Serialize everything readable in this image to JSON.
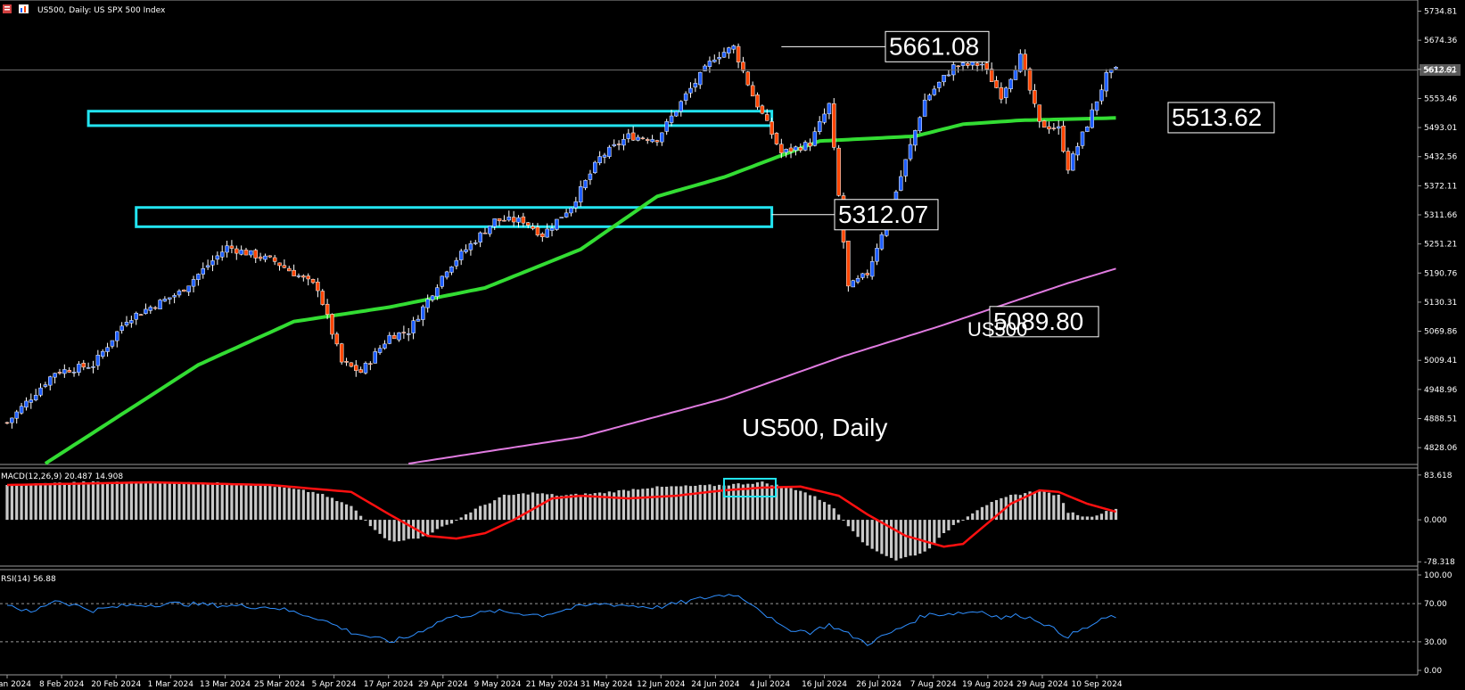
{
  "header": {
    "symbol_title": "US500, Daily:  US SPX 500 Index"
  },
  "watermark": {
    "text": "US500, Daily"
  },
  "colors": {
    "background": "#000000",
    "bull": "#1e5eff",
    "bear": "#ff4500",
    "ma_fast": "#33dd33",
    "ma_slow": "#e07be0",
    "zone": "#22e4f0",
    "macd_hist": "#c8c8c8",
    "macd_signal": "#ff1010",
    "rsi": "#2f8fff",
    "grid": "#3a3a3a"
  },
  "chart_data": [
    {
      "type": "candlestick",
      "title": "US500, Daily:  US SPX 500 Index",
      "ylim": [
        4795,
        5745
      ],
      "yticks": [
        "5734.81",
        "5674.36",
        "5613.91",
        "5553.46",
        "5493.01",
        "5432.56",
        "5372.11",
        "5311.66",
        "5251.21",
        "5190.76",
        "5130.31",
        "5069.86",
        "5009.41",
        "4948.96",
        "4888.51",
        "4828.06"
      ],
      "current_price": "5612.62",
      "x_dates": [
        "29 Jan 2024",
        "8 Feb 2024",
        "20 Feb 2024",
        "1 Mar 2024",
        "13 Mar 2024",
        "25 Mar 2024",
        "5 Apr 2024",
        "17 Apr 2024",
        "29 Apr 2024",
        "9 May 2024",
        "21 May 2024",
        "31 May 2024",
        "12 Jun 2024",
        "24 Jun 2024",
        "4 Jul 2024",
        "16 Jul 2024",
        "26 Jul 2024",
        "7 Aug 2024",
        "19 Aug 2024",
        "29 Aug 2024",
        "10 Sep 2024"
      ],
      "close_keypoints": [
        [
          0,
          4880
        ],
        [
          10,
          4985
        ],
        [
          18,
          5000
        ],
        [
          25,
          5095
        ],
        [
          36,
          5150
        ],
        [
          46,
          5245
        ],
        [
          56,
          5215
        ],
        [
          65,
          5160
        ],
        [
          70,
          5005
        ],
        [
          74,
          4985
        ],
        [
          80,
          5060
        ],
        [
          84,
          5070
        ],
        [
          92,
          5200
        ],
        [
          102,
          5300
        ],
        [
          108,
          5300
        ],
        [
          112,
          5270
        ],
        [
          118,
          5330
        ],
        [
          124,
          5430
        ],
        [
          130,
          5475
        ],
        [
          136,
          5470
        ],
        [
          142,
          5560
        ],
        [
          148,
          5640
        ],
        [
          152,
          5660
        ],
        [
          156,
          5560
        ],
        [
          162,
          5440
        ],
        [
          168,
          5460
        ],
        [
          172,
          5540
        ],
        [
          176,
          5160
        ],
        [
          180,
          5190
        ],
        [
          186,
          5360
        ],
        [
          192,
          5550
        ],
        [
          198,
          5620
        ],
        [
          204,
          5625
        ],
        [
          208,
          5560
        ],
        [
          212,
          5640
        ],
        [
          216,
          5500
        ],
        [
          220,
          5490
        ],
        [
          222,
          5410
        ],
        [
          226,
          5500
        ],
        [
          230,
          5600
        ],
        [
          232,
          5612
        ]
      ],
      "series": [
        {
          "name": "MA fast",
          "keypoints": [
            [
              8,
              4795
            ],
            [
              40,
              5000
            ],
            [
              60,
              5090
            ],
            [
              80,
              5120
            ],
            [
              100,
              5160
            ],
            [
              120,
              5240
            ],
            [
              136,
              5350
            ],
            [
              150,
              5390
            ],
            [
              170,
              5465
            ],
            [
              190,
              5475
            ],
            [
              200,
              5500
            ],
            [
              212,
              5508
            ],
            [
              232,
              5513
            ]
          ]
        },
        {
          "name": "MA slow",
          "keypoints": [
            [
              84,
              4795
            ],
            [
              120,
              4850
            ],
            [
              150,
              4930
            ],
            [
              175,
              5018
            ],
            [
              195,
              5080
            ],
            [
              210,
              5130
            ],
            [
              222,
              5170
            ],
            [
              232,
              5200
            ]
          ]
        }
      ],
      "annotations": [
        {
          "text": "5661.08",
          "price": 5661.08
        },
        {
          "text": "5513.62",
          "price": 5513.62
        },
        {
          "text": "5312.07",
          "price": 5312.07
        },
        {
          "text": "5089.80",
          "price": 5089.8
        },
        {
          "text": "US500",
          "price": 5075
        }
      ],
      "zones": [
        {
          "top": 5527,
          "bottom": 5497,
          "from_bar": 17,
          "to_bar": 160
        },
        {
          "top": 5327,
          "bottom": 5287,
          "from_bar": 27,
          "to_bar": 160
        }
      ]
    },
    {
      "type": "bar",
      "title": "MACD(12,26,9) 20.487 14.908",
      "ylim": [
        -83,
        90
      ],
      "yticks": [
        "83.618",
        "0.000",
        "-78.318"
      ],
      "hist_keypoints": [
        [
          0,
          65
        ],
        [
          15,
          70
        ],
        [
          30,
          70
        ],
        [
          45,
          68
        ],
        [
          55,
          64
        ],
        [
          65,
          50
        ],
        [
          72,
          25
        ],
        [
          76,
          -10
        ],
        [
          80,
          -40
        ],
        [
          86,
          -35
        ],
        [
          92,
          -10
        ],
        [
          98,
          20
        ],
        [
          104,
          45
        ],
        [
          110,
          50
        ],
        [
          116,
          45
        ],
        [
          124,
          50
        ],
        [
          134,
          60
        ],
        [
          140,
          62
        ],
        [
          150,
          65
        ],
        [
          158,
          70
        ],
        [
          166,
          55
        ],
        [
          172,
          30
        ],
        [
          176,
          -10
        ],
        [
          180,
          -50
        ],
        [
          186,
          -75
        ],
        [
          192,
          -60
        ],
        [
          198,
          -10
        ],
        [
          204,
          25
        ],
        [
          210,
          45
        ],
        [
          216,
          55
        ],
        [
          220,
          45
        ],
        [
          222,
          15
        ],
        [
          226,
          5
        ],
        [
          232,
          20
        ]
      ],
      "signal_keypoints": [
        [
          0,
          65
        ],
        [
          30,
          70
        ],
        [
          55,
          65
        ],
        [
          72,
          52
        ],
        [
          80,
          10
        ],
        [
          88,
          -30
        ],
        [
          94,
          -35
        ],
        [
          100,
          -25
        ],
        [
          106,
          0
        ],
        [
          114,
          40
        ],
        [
          120,
          45
        ],
        [
          130,
          40
        ],
        [
          140,
          45
        ],
        [
          150,
          55
        ],
        [
          158,
          60
        ],
        [
          166,
          62
        ],
        [
          174,
          45
        ],
        [
          180,
          10
        ],
        [
          188,
          -30
        ],
        [
          196,
          -50
        ],
        [
          200,
          -45
        ],
        [
          206,
          0
        ],
        [
          210,
          30
        ],
        [
          216,
          55
        ],
        [
          220,
          52
        ],
        [
          226,
          30
        ],
        [
          232,
          15
        ]
      ]
    },
    {
      "type": "line",
      "title": "RSI(14) 56.88",
      "ylim": [
        0,
        100
      ],
      "yticks": [
        "100.00",
        "70.00",
        "30.00",
        "0.00"
      ],
      "levels": [
        70,
        30
      ],
      "rsi_keypoints": [
        [
          0,
          70
        ],
        [
          5,
          60
        ],
        [
          10,
          74
        ],
        [
          18,
          63
        ],
        [
          25,
          68
        ],
        [
          36,
          70
        ],
        [
          46,
          68
        ],
        [
          56,
          66
        ],
        [
          65,
          55
        ],
        [
          72,
          40
        ],
        [
          80,
          30
        ],
        [
          84,
          35
        ],
        [
          92,
          55
        ],
        [
          102,
          62
        ],
        [
          112,
          58
        ],
        [
          118,
          65
        ],
        [
          124,
          70
        ],
        [
          130,
          68
        ],
        [
          136,
          66
        ],
        [
          142,
          72
        ],
        [
          148,
          78
        ],
        [
          152,
          80
        ],
        [
          156,
          70
        ],
        [
          162,
          45
        ],
        [
          168,
          40
        ],
        [
          172,
          48
        ],
        [
          176,
          38
        ],
        [
          180,
          28
        ],
        [
          186,
          42
        ],
        [
          192,
          58
        ],
        [
          198,
          60
        ],
        [
          204,
          62
        ],
        [
          208,
          55
        ],
        [
          212,
          58
        ],
        [
          216,
          52
        ],
        [
          220,
          40
        ],
        [
          222,
          36
        ],
        [
          226,
          45
        ],
        [
          230,
          55
        ],
        [
          232,
          56.88
        ]
      ]
    }
  ]
}
